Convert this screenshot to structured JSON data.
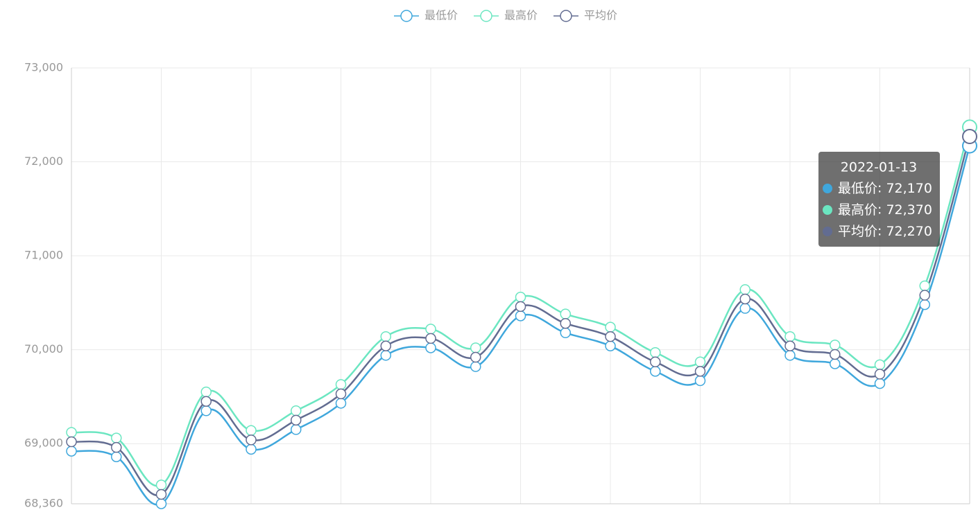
{
  "chart_data": {
    "type": "line",
    "smooth": true,
    "categories": [
      null,
      null,
      null,
      null,
      null,
      null,
      null,
      null,
      null,
      null,
      null,
      null,
      null,
      null,
      null,
      null,
      null,
      null,
      null,
      null,
      "2022-01-13"
    ],
    "series": [
      {
        "name": "最低价",
        "color": "#3fa7dc",
        "values": [
          68920,
          68860,
          68360,
          69350,
          68940,
          69150,
          69430,
          69940,
          70020,
          69820,
          70360,
          70180,
          70040,
          69770,
          69670,
          70440,
          69940,
          69850,
          69640,
          70480,
          72170
        ],
        "value_labels": [
          null,
          null,
          null,
          null,
          null,
          null,
          null,
          null,
          null,
          null,
          null,
          null,
          null,
          null,
          null,
          null,
          null,
          null,
          null,
          null,
          "72,170"
        ]
      },
      {
        "name": "最高价",
        "color": "#6be6c1",
        "values": [
          69120,
          69060,
          68560,
          69550,
          69140,
          69350,
          69630,
          70140,
          70220,
          70020,
          70560,
          70380,
          70240,
          69970,
          69870,
          70640,
          70140,
          70050,
          69840,
          70680,
          72370
        ],
        "value_labels": [
          null,
          null,
          null,
          null,
          null,
          null,
          null,
          null,
          null,
          null,
          null,
          null,
          null,
          null,
          null,
          null,
          null,
          null,
          null,
          null,
          "72,370"
        ]
      },
      {
        "name": "平均价",
        "color": "#626c91",
        "values": [
          69020,
          68960,
          68460,
          69450,
          69040,
          69250,
          69530,
          70040,
          70120,
          69920,
          70460,
          70280,
          70140,
          69870,
          69770,
          70540,
          70040,
          69950,
          69740,
          70580,
          72270
        ],
        "value_labels": [
          null,
          null,
          null,
          null,
          null,
          null,
          null,
          null,
          null,
          null,
          null,
          null,
          null,
          null,
          null,
          null,
          null,
          null,
          null,
          null,
          "72,270"
        ]
      }
    ],
    "ylim": [
      68360,
      73000
    ],
    "yticks": [
      {
        "value": 68360,
        "label": "68,360"
      },
      {
        "value": 69000,
        "label": "69,000"
      },
      {
        "value": 70000,
        "label": "70,000"
      },
      {
        "value": 71000,
        "label": "71,000"
      },
      {
        "value": 72000,
        "label": "72,000"
      },
      {
        "value": 73000,
        "label": "73,000"
      }
    ],
    "grid": true,
    "legend": "top"
  }
}
